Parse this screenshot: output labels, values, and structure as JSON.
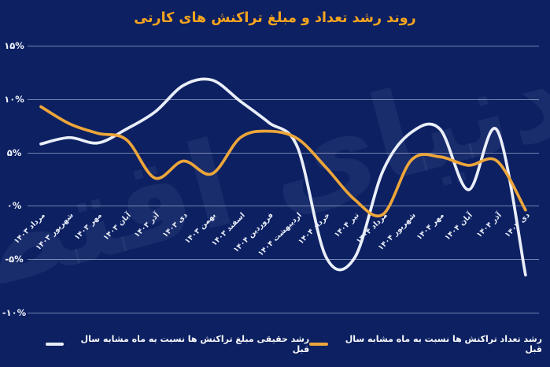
{
  "title": "روند رشد تعداد و مبلغ تراکنش های کارتی",
  "watermark": "دنیای اقتصاد",
  "colors": {
    "background": "#0c2062",
    "title": "#f7a51e",
    "amount_line": "#e9eef8",
    "count_line": "#eda63a",
    "grid": "#dce6f5",
    "axis_text": "#f2f5fb"
  },
  "y_axis": {
    "labels": [
      "۱۵%",
      "۱۰%",
      "۵%",
      "۰%",
      "-۵%",
      "-۱۰%"
    ],
    "values": [
      15,
      10,
      5,
      0,
      -5,
      -10
    ]
  },
  "legend": [
    {
      "label": "رشد حقیقی مبلغ تراکنش ها نسبت به ماه مشابه سال قبل",
      "series": "amount"
    },
    {
      "label": "رشد تعداد تراکنش ها نسبت به ماه مشابه سال قبل",
      "series": "count"
    }
  ],
  "chart_data": {
    "type": "line",
    "title": "روند رشد تعداد و مبلغ تراکنش های کارتی",
    "x": [
      "مرداد ۱۴۰۳",
      "شهریور ۱۴۰۳",
      "مهر ۱۴۰۳",
      "آبان ۱۴۰۳",
      "آذر ۱۴۰۳",
      "دی ۱۴۰۳",
      "بهمن ۱۴۰۳",
      "اسفند ۱۴۰۳",
      "فروردین ۱۴۰۴",
      "اردیبهشت ۱۴۰۴",
      "خرداد ۱۴۰۴",
      "تیر ۱۴۰۴",
      "مرداد ۱۴۰۴",
      "شهریور ۱۴۰۴",
      "مهر ۱۴۰۴",
      "آبان ۱۴۰۴",
      "آذر ۱۴۰۴",
      "دی ۱۴۰۴"
    ],
    "series": [
      {
        "name": "رشد حقیقی مبلغ تراکنش ها نسبت به ماه مشابه سال قبل",
        "color": "#e9eef8",
        "values": [
          5.8,
          6.4,
          5.9,
          7.2,
          8.8,
          11.3,
          11.8,
          9.8,
          7.8,
          5.5,
          -4.8,
          -4.9,
          3.3,
          6.9,
          7.2,
          1.5,
          7.1,
          -6.5
        ]
      },
      {
        "name": "رشد تعداد تراکنش ها نسبت به ماه مشابه سال قبل",
        "color": "#eda63a",
        "values": [
          9.3,
          7.7,
          6.8,
          6.2,
          2.6,
          4.2,
          3.0,
          6.4,
          7.0,
          6.3,
          3.6,
          0.6,
          -0.8,
          4.3,
          4.6,
          3.8,
          4.2,
          -0.4
        ]
      }
    ],
    "ylim": [
      -10,
      15
    ],
    "y_unit": "%",
    "grid": true,
    "legend_position": "bottom"
  }
}
